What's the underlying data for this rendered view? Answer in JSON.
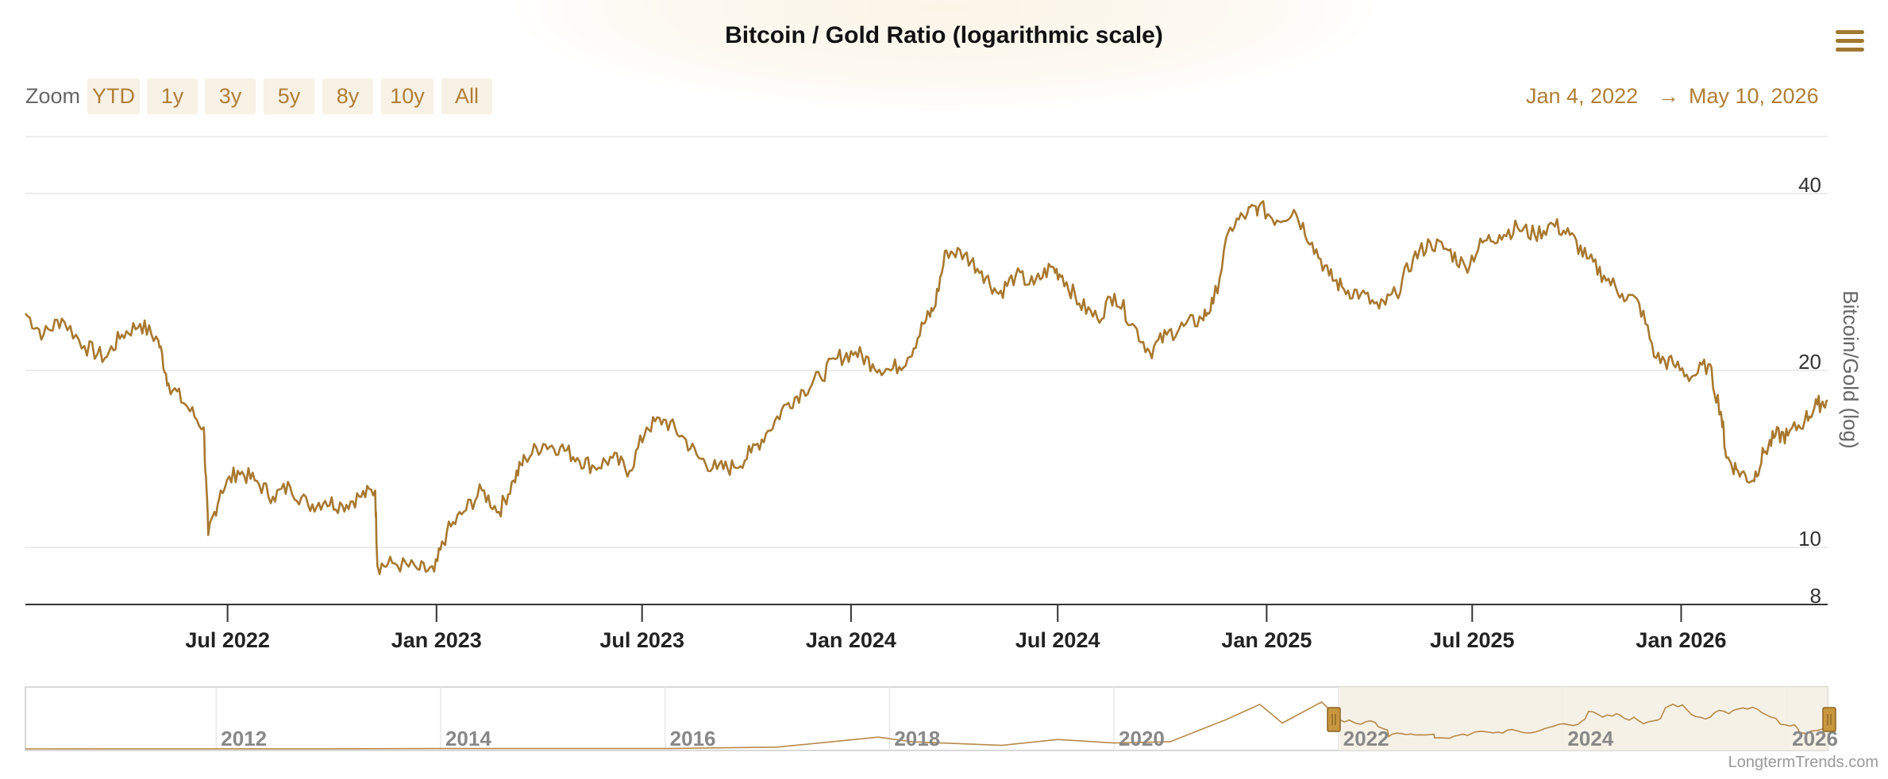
{
  "title": "Bitcoin / Gold Ratio (logarithmic scale)",
  "zoom": {
    "label": "Zoom",
    "buttons": [
      "YTD",
      "1y",
      "3y",
      "5y",
      "8y",
      "10y",
      "All"
    ]
  },
  "range": {
    "from": "Jan 4, 2022",
    "arrow": "→",
    "to": "May 10, 2026"
  },
  "credit": "LongtermTrends.com",
  "colors": {
    "line": "#a8782f",
    "accent": "#b07e35",
    "navigator_fill": "#f5efe2"
  },
  "chart_data": {
    "type": "line",
    "title": "Bitcoin / Gold Ratio (logarithmic scale)",
    "ylabel": "Bitcoin/Gold (log)",
    "yscale": "log",
    "ylim": [
      8,
      50
    ],
    "xlim": [
      "2022-01-04",
      "2026-05-10"
    ],
    "y_ticks": [
      8,
      10,
      20,
      40
    ],
    "x_ticks": [
      "Jul 2022",
      "Jan 2023",
      "Jul 2023",
      "Jan 2024",
      "Jul 2024",
      "Jan 2025",
      "Jul 2025",
      "Jan 2026"
    ],
    "grid": true,
    "series": [
      {
        "x": [
          "2022-01-04",
          "2022-01-20",
          "2022-02-05",
          "2022-02-25",
          "2022-03-15",
          "2022-03-30",
          "2022-04-15",
          "2022-05-01",
          "2022-05-10",
          "2022-05-25",
          "2022-06-10",
          "2022-06-14",
          "2022-06-25",
          "2022-07-10",
          "2022-07-25",
          "2022-08-10",
          "2022-08-25",
          "2022-09-10",
          "2022-09-25",
          "2022-10-10",
          "2022-10-25",
          "2022-11-08",
          "2022-11-10",
          "2022-11-25",
          "2022-12-15",
          "2022-12-30",
          "2023-01-10",
          "2023-01-25",
          "2023-02-10",
          "2023-02-25",
          "2023-03-10",
          "2023-03-20",
          "2023-04-05",
          "2023-04-20",
          "2023-05-05",
          "2023-05-20",
          "2023-06-05",
          "2023-06-20",
          "2023-07-05",
          "2023-07-20",
          "2023-08-05",
          "2023-08-20",
          "2023-09-05",
          "2023-09-20",
          "2023-10-05",
          "2023-10-20",
          "2023-11-05",
          "2023-11-20",
          "2023-12-05",
          "2023-12-20",
          "2024-01-05",
          "2024-01-20",
          "2024-02-05",
          "2024-02-20",
          "2024-03-05",
          "2024-03-14",
          "2024-03-25",
          "2024-04-10",
          "2024-04-25",
          "2024-05-10",
          "2024-05-25",
          "2024-06-10",
          "2024-06-25",
          "2024-07-05",
          "2024-07-20",
          "2024-08-05",
          "2024-08-20",
          "2024-09-05",
          "2024-09-20",
          "2024-10-05",
          "2024-10-20",
          "2024-11-05",
          "2024-11-15",
          "2024-11-30",
          "2024-12-15",
          "2024-12-25",
          "2025-01-10",
          "2025-01-25",
          "2025-02-10",
          "2025-02-25",
          "2025-03-10",
          "2025-03-25",
          "2025-04-10",
          "2025-04-25",
          "2025-05-10",
          "2025-05-25",
          "2025-06-10",
          "2025-06-25",
          "2025-07-10",
          "2025-07-25",
          "2025-08-10",
          "2025-08-25",
          "2025-09-10",
          "2025-09-25",
          "2025-10-10",
          "2025-10-25",
          "2025-11-10",
          "2025-11-25",
          "2025-12-10",
          "2025-12-25",
          "2026-01-10",
          "2026-01-25",
          "2026-02-05",
          "2026-02-10",
          "2026-02-20",
          "2026-03-05",
          "2026-03-15",
          "2026-03-25",
          "2026-04-05",
          "2026-04-20",
          "2026-05-01",
          "2026-05-10"
        ],
        "y": [
          25,
          23,
          24.5,
          22,
          21,
          23,
          24,
          22.5,
          19,
          17.5,
          16,
          10.5,
          12.5,
          13.5,
          13,
          12.2,
          12.7,
          11.8,
          12,
          11.8,
          12.2,
          12.5,
          9.3,
          9.4,
          9.2,
          9.1,
          10.6,
          11.5,
          12.5,
          11.5,
          13,
          14.2,
          15,
          14.8,
          14.2,
          13.7,
          14.2,
          13.5,
          16,
          16.5,
          15.5,
          14.2,
          13.6,
          13.7,
          14.5,
          15.8,
          17.5,
          18.5,
          19.5,
          21,
          21.5,
          20.5,
          20,
          21,
          24,
          25.5,
          32,
          31.5,
          29.5,
          27,
          29,
          28,
          30,
          29,
          26,
          24.5,
          27,
          24,
          21.5,
          23,
          23.8,
          24.5,
          26,
          35,
          37,
          38,
          36,
          37.5,
          33,
          29,
          27.5,
          27,
          25.5,
          27,
          31,
          33,
          32,
          30,
          33,
          34,
          35,
          34,
          35.5,
          34,
          31,
          29,
          27,
          26,
          21,
          20.5,
          19.5,
          20.5,
          17,
          14.2,
          13.5,
          13,
          14.5,
          15.5,
          15.5,
          16.5,
          17.5,
          17.8
        ]
      }
    ],
    "navigator": {
      "x_ticks": [
        "2012",
        "2014",
        "2016",
        "2018",
        "2020",
        "2022",
        "2024",
        "2026"
      ],
      "selection": [
        "2022-01-04",
        "2026-05-10"
      ]
    }
  }
}
